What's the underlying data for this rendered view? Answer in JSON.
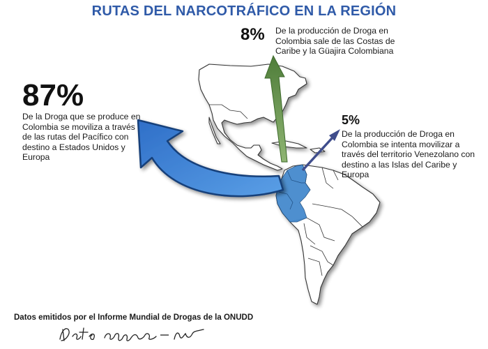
{
  "title": "RUTAS DEL NARCOTRÁFICO EN LA REGIÓN",
  "pacific_route": {
    "percent": "87%",
    "text": "De la Droga que se produce en Colombia se moviliza a través de las rutas del Pacífico con destino a Estados Unidos y Europa"
  },
  "caribbean_route": {
    "percent": "8%",
    "text": "De la producción de Droga en Colombia sale de las Costas de Caribe y la Güajira Colombiana"
  },
  "venezuela_route": {
    "percent": "5%",
    "text": "De la producción de Droga en Colombia se intenta movilizar a través del territorio Venezolano con destino a las Islas del Caribe y Europa"
  },
  "source": "Datos emitidos por el Informe Mundial de Drogas de la ONUDD",
  "handwritten_note": "Datos aprobados - firma",
  "colors": {
    "title": "#2f5aa8",
    "pacific_arrow": "#3a82d8",
    "caribbean_arrow": "#6f9a52",
    "venezuela_arrow": "#3f4d8c",
    "highlight_region": "#3f86cc",
    "land": "#ffffff",
    "borders": "#333333"
  }
}
